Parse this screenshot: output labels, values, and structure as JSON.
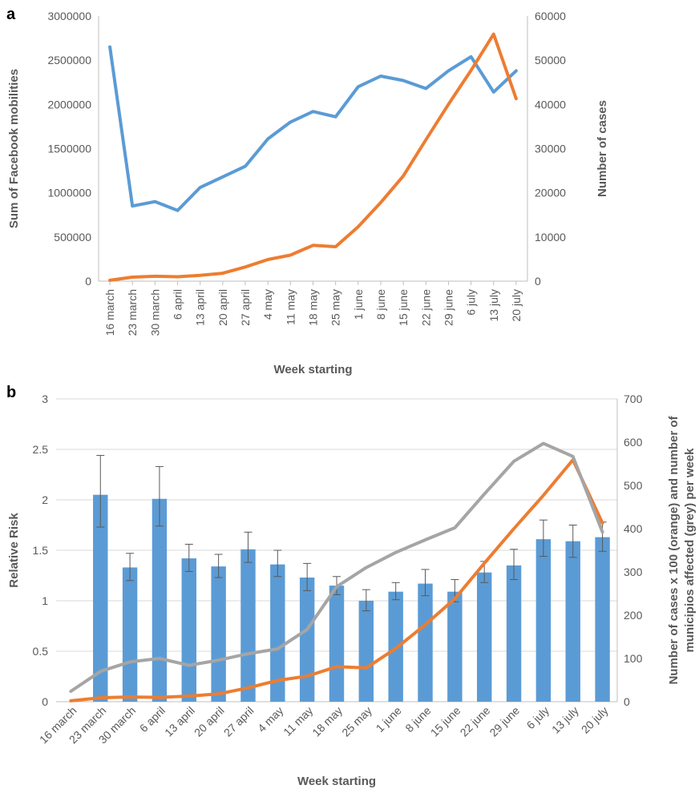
{
  "chart_data": [
    {
      "panel": "a",
      "type": "line",
      "categories": [
        "16 march",
        "23 march",
        "30 march",
        "6 april",
        "13 april",
        "20 april",
        "27 april",
        "4 may",
        "11 may",
        "18 may",
        "25 may",
        "1 june",
        "8 june",
        "15 june",
        "22 june",
        "29 june",
        "6 july",
        "13 july",
        "20 july"
      ],
      "xlabel": "Week starting",
      "ylabel": "Sum of Facebook mobilities",
      "y2label": "Number of cases",
      "ylim": [
        0,
        3000000
      ],
      "y2lim": [
        0,
        60000
      ],
      "yticks": [
        "0",
        "500000",
        "1000000",
        "1500000",
        "2000000",
        "2500000",
        "3000000"
      ],
      "y2ticks": [
        "0",
        "10000",
        "20000",
        "30000",
        "40000",
        "50000",
        "60000"
      ],
      "grid": false,
      "series": [
        {
          "axis": "left",
          "color": "#5b9bd5",
          "values": [
            2650000,
            850000,
            900000,
            800000,
            1060000,
            1180000,
            1300000,
            1610000,
            1800000,
            1920000,
            1860000,
            2200000,
            2320000,
            2270000,
            2180000,
            2380000,
            2540000,
            2140000,
            2380000
          ]
        },
        {
          "axis": "right",
          "color": "#ed7d31",
          "values": [
            200,
            900,
            1100,
            1000,
            1300,
            1800,
            3200,
            4900,
            5900,
            8100,
            7800,
            12300,
            17800,
            23800,
            32000,
            40000,
            47700,
            55900,
            41300
          ]
        }
      ]
    },
    {
      "panel": "b",
      "type": "bar",
      "categories": [
        "16 march",
        "23 march",
        "30 march",
        "6 april",
        "13 april",
        "20 april",
        "27 april",
        "4 may",
        "11 may",
        "18 may",
        "25 may",
        "1 june",
        "8 june",
        "15 june",
        "22 june",
        "29 june",
        "6 july",
        "13 july",
        "20 july"
      ],
      "xlabel": "Week starting",
      "ylabel": "Relative Risk",
      "y2label_line1": "Number of cases x 100 (orange) and number of",
      "y2label_line2": "municipios affected (grey) per week",
      "ylim": [
        0,
        3
      ],
      "y2lim": [
        0,
        700
      ],
      "yticks": [
        "0",
        "0.5",
        "1",
        "1.5",
        "2",
        "2.5",
        "3"
      ],
      "y2ticks": [
        "0",
        "100",
        "200",
        "300",
        "400",
        "500",
        "600",
        "700"
      ],
      "grid": true,
      "bar_color": "#5b9bd5",
      "bars": [
        null,
        2.05,
        1.33,
        2.01,
        1.42,
        1.34,
        1.51,
        1.36,
        1.23,
        1.15,
        1.0,
        1.09,
        1.17,
        1.09,
        1.28,
        1.35,
        1.61,
        1.59,
        1.63
      ],
      "err_hi": [
        null,
        2.44,
        1.47,
        2.33,
        1.56,
        1.46,
        1.68,
        1.5,
        1.37,
        1.24,
        1.11,
        1.18,
        1.31,
        1.21,
        1.39,
        1.51,
        1.8,
        1.75,
        1.78
      ],
      "err_lo": [
        null,
        1.73,
        1.2,
        1.74,
        1.29,
        1.23,
        1.38,
        1.24,
        1.1,
        1.06,
        0.9,
        1.01,
        1.05,
        0.99,
        1.18,
        1.21,
        1.44,
        1.43,
        1.49
      ],
      "series": [
        {
          "axis": "right",
          "color": "#ed7d31",
          "values": [
            2,
            9,
            11,
            10,
            13,
            18,
            32,
            49,
            59,
            81,
            78,
            123,
            178,
            238,
            320,
            400,
            477,
            559,
            413
          ]
        },
        {
          "axis": "right",
          "color": "#a5a5a5",
          "values": [
            24,
            70,
            92,
            100,
            84,
            96,
            111,
            122,
            167,
            266,
            310,
            345,
            374,
            402,
            480,
            556,
            597,
            567,
            392
          ]
        }
      ]
    }
  ]
}
